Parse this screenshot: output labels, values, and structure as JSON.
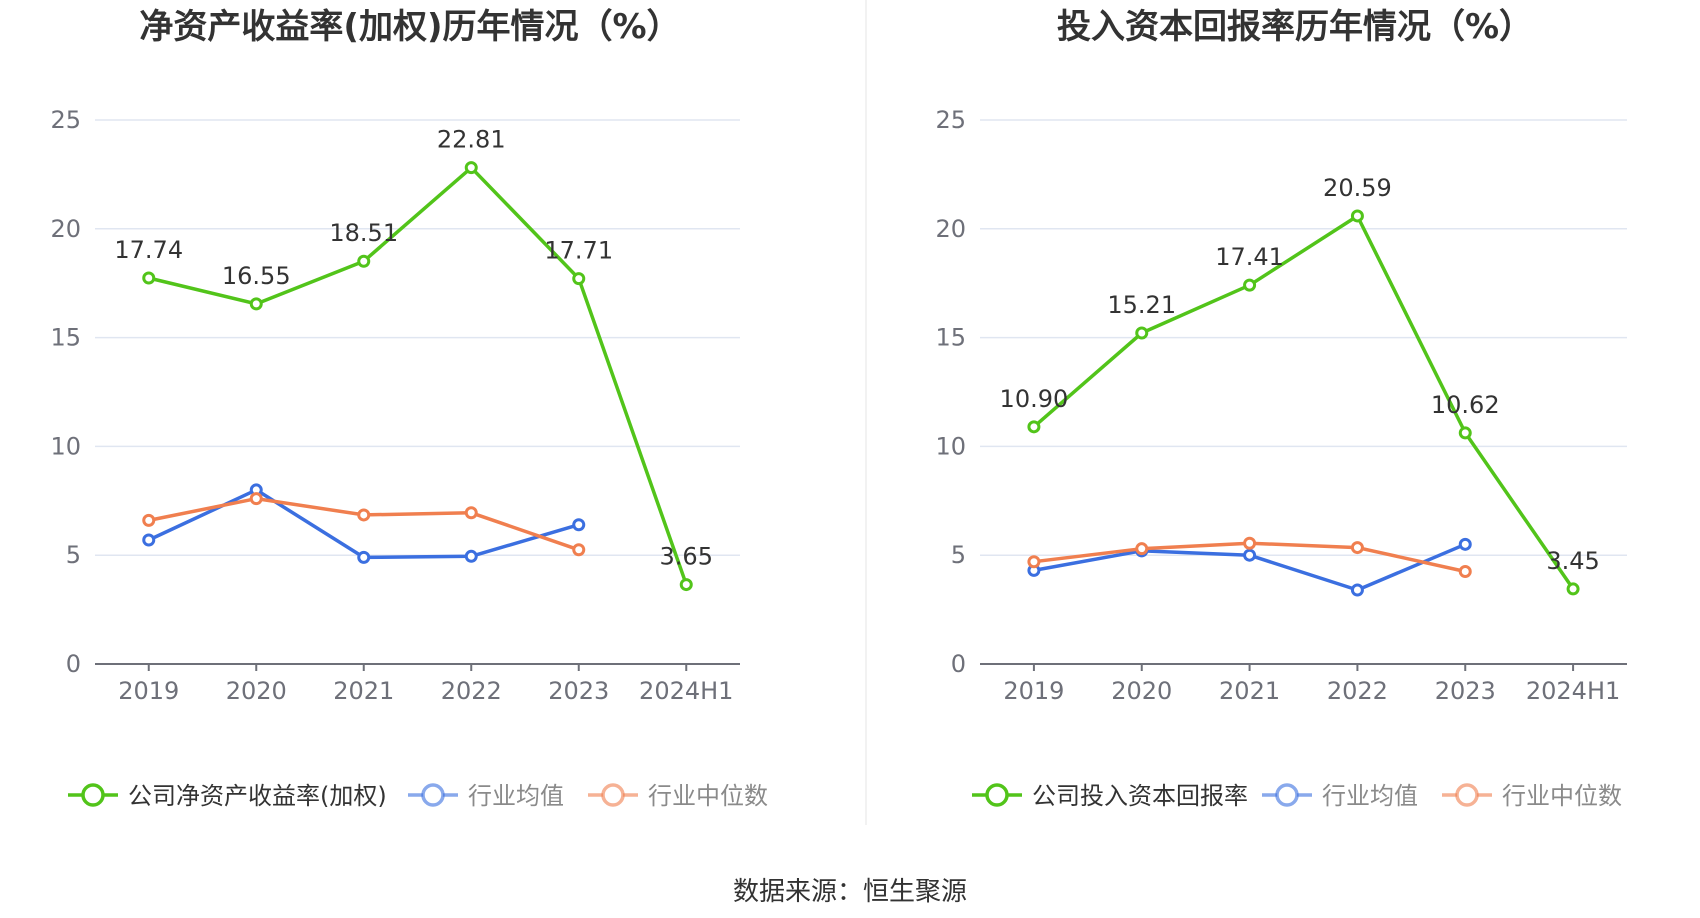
{
  "chart_data": [
    {
      "type": "line",
      "title": "净资产收益率(加权)历年情况（%）",
      "categories": [
        "2019",
        "2020",
        "2021",
        "2022",
        "2023",
        "2024H1"
      ],
      "yticks": [
        "0",
        "5",
        "10",
        "15",
        "20",
        "25"
      ],
      "ylim": [
        0,
        25
      ],
      "grid": true,
      "legend_position": "bottom",
      "series": [
        {
          "name": "公司净资产收益率(加权)",
          "color": "#52c41a",
          "values": [
            17.74,
            16.55,
            18.51,
            22.81,
            17.71,
            3.65
          ],
          "labels": [
            "17.74",
            "16.55",
            "18.51",
            "22.81",
            "17.71",
            "3.65"
          ]
        },
        {
          "name": "行业均值",
          "color": "#3b6fe0",
          "values": [
            5.7,
            8.0,
            4.9,
            4.95,
            6.4,
            null
          ]
        },
        {
          "name": "行业中位数",
          "color": "#f07f4f",
          "values": [
            6.6,
            7.6,
            6.85,
            6.95,
            5.25,
            null
          ]
        }
      ]
    },
    {
      "type": "line",
      "title": "投入资本回报率历年情况（%）",
      "categories": [
        "2019",
        "2020",
        "2021",
        "2022",
        "2023",
        "2024H1"
      ],
      "yticks": [
        "0",
        "5",
        "10",
        "15",
        "20",
        "25"
      ],
      "ylim": [
        0,
        25
      ],
      "grid": true,
      "legend_position": "bottom",
      "series": [
        {
          "name": "公司投入资本回报率",
          "color": "#52c41a",
          "values": [
            10.9,
            15.21,
            17.41,
            20.59,
            10.62,
            3.45
          ],
          "labels": [
            "10.90",
            "15.21",
            "17.41",
            "20.59",
            "10.62",
            "3.45"
          ]
        },
        {
          "name": "行业均值",
          "color": "#3b6fe0",
          "values": [
            4.3,
            5.2,
            5.0,
            3.4,
            5.5,
            null
          ]
        },
        {
          "name": "行业中位数",
          "color": "#f07f4f",
          "values": [
            4.7,
            5.3,
            5.55,
            5.35,
            4.25,
            null
          ]
        }
      ]
    }
  ],
  "footer": {
    "source": "数据来源：恒生聚源"
  }
}
